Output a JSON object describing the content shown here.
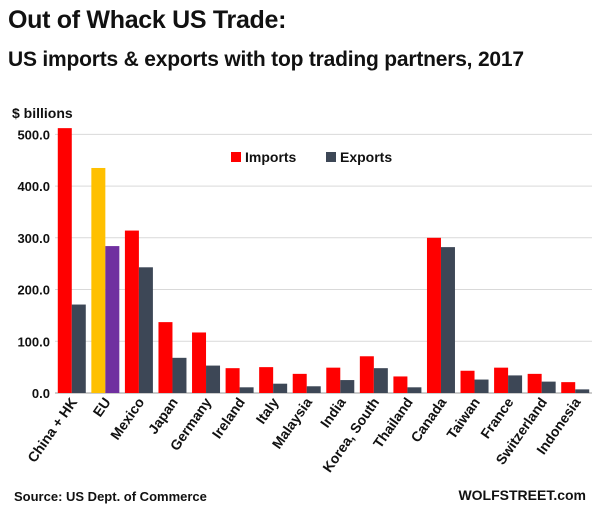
{
  "header": {
    "title": "Out of Whack US Trade:",
    "subtitle": "US imports & exports with top trading partners, 2017"
  },
  "footer": {
    "source": "Source: US Dept. of Commerce",
    "brand": "WOLFSTREET.com"
  },
  "colors": {
    "imports": "#ff0000",
    "exports": "#3d4756",
    "eu_imports": "#ffc000",
    "eu_exports": "#7030a0",
    "grid": "#d9d9d9"
  },
  "chart_data": {
    "type": "bar",
    "ylabel": "$ billions",
    "ylim": [
      0,
      520
    ],
    "yticks": [
      "0.0",
      "100.0",
      "200.0",
      "300.0",
      "400.0",
      "500.0"
    ],
    "grid": true,
    "legend_position": "top-center",
    "categories": [
      "China + HK",
      "EU",
      "Mexico",
      "Japan",
      "Germany",
      "Ireland",
      "Italy",
      "Malaysia",
      "India",
      "Korea, South",
      "Thailand",
      "Canada",
      "Taiwan",
      "France",
      "Switzerland",
      "Indonesia"
    ],
    "series": [
      {
        "name": "Imports",
        "values": [
          512,
          435,
          314,
          137,
          117,
          48,
          50,
          37,
          49,
          71,
          32,
          300,
          43,
          49,
          37,
          21
        ]
      },
      {
        "name": "Exports",
        "values": [
          171,
          284,
          243,
          68,
          53,
          11,
          18,
          13,
          25,
          48,
          11,
          282,
          26,
          34,
          22,
          7
        ]
      }
    ]
  }
}
